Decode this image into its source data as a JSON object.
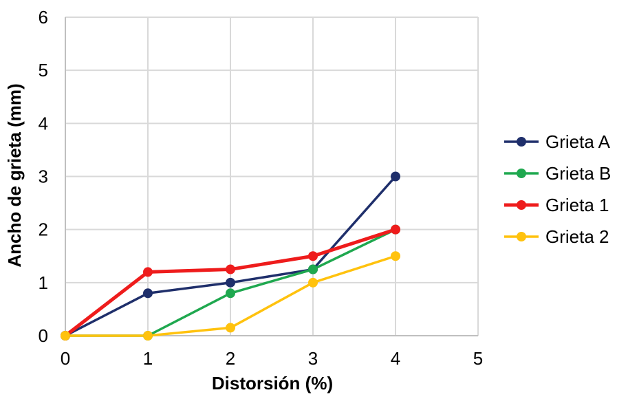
{
  "chart_data": {
    "type": "line",
    "title": "",
    "xlabel": "Distorsión (%)",
    "ylabel": "Ancho de grieta (mm)",
    "xlim": [
      0,
      5
    ],
    "ylim": [
      0,
      6
    ],
    "xticks": [
      0,
      1,
      2,
      3,
      4,
      5
    ],
    "yticks": [
      0,
      1,
      2,
      3,
      4,
      5,
      6
    ],
    "grid": true,
    "legend_position": "right",
    "series": [
      {
        "name": "Grieta A",
        "color": "#1f2f6b",
        "x": [
          0,
          1,
          2,
          3,
          4
        ],
        "y": [
          0,
          0.8,
          1.0,
          1.25,
          3.0
        ]
      },
      {
        "name": "Grieta B",
        "color": "#1fa84f",
        "x": [
          0,
          1,
          2,
          3,
          4
        ],
        "y": [
          0,
          0,
          0.8,
          1.25,
          2.0
        ]
      },
      {
        "name": "Grieta 1",
        "color": "#ee1c1c",
        "x": [
          0,
          1,
          2,
          3,
          4
        ],
        "y": [
          0,
          1.2,
          1.25,
          1.5,
          2.0
        ]
      },
      {
        "name": "Grieta 2",
        "color": "#ffc20e",
        "x": [
          0,
          1,
          2,
          3,
          4
        ],
        "y": [
          0,
          0,
          0.15,
          1.0,
          1.5
        ]
      }
    ]
  }
}
